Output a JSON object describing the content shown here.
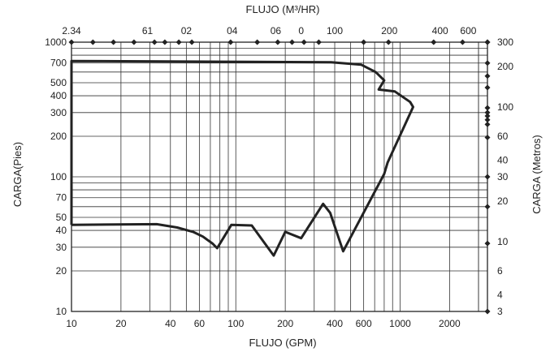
{
  "chart_data": {
    "type": "line",
    "x_scale": "log",
    "y_scale": "log",
    "xlim": [
      10,
      3400
    ],
    "ylim": [
      10,
      1000
    ],
    "grid": true,
    "legend": "none",
    "line_color": "#222222",
    "axes": {
      "bottom": {
        "title": "FLUJO (GPM)",
        "ticks": [
          {
            "value": 10,
            "label": "10"
          },
          {
            "value": 20,
            "label": "20"
          },
          {
            "value": 40,
            "label": "40"
          },
          {
            "value": 60,
            "label": "60"
          },
          {
            "value": 100,
            "label": "100"
          },
          {
            "value": 200,
            "label": "200"
          },
          {
            "value": 400,
            "label": "400"
          },
          {
            "value": 600,
            "label": "600"
          },
          {
            "value": 1000,
            "label": "1000"
          },
          {
            "value": 2000,
            "label": "2000"
          }
        ]
      },
      "left": {
        "title": "CARGA(Pies)",
        "ticks": [
          {
            "value": 10,
            "label": "10"
          },
          {
            "value": 20,
            "label": "20"
          },
          {
            "value": 30,
            "label": "30"
          },
          {
            "value": 40,
            "label": "40"
          },
          {
            "value": 50,
            "label": "50"
          },
          {
            "value": 70,
            "label": "70"
          },
          {
            "value": 100,
            "label": "100"
          },
          {
            "value": 200,
            "label": "200"
          },
          {
            "value": 300,
            "label": "300"
          },
          {
            "value": 400,
            "label": "400"
          },
          {
            "value": 500,
            "label": "500"
          },
          {
            "value": 700,
            "label": "700"
          },
          {
            "value": 1000,
            "label": "1000"
          }
        ]
      },
      "top": {
        "title": "FLUJO (M³/HR)",
        "markers": [
          10,
          13.5,
          18,
          24,
          32,
          37,
          45,
          54,
          93,
          135,
          180,
          220,
          260,
          320,
          600,
          850,
          1600,
          2400,
          3400
        ],
        "labels": [
          {
            "value": 10,
            "label": "2.34"
          },
          {
            "value": 29,
            "label": "61"
          },
          {
            "value": 50,
            "label": "02"
          },
          {
            "value": 95,
            "label": "04"
          },
          {
            "value": 175,
            "label": "06"
          },
          {
            "value": 250,
            "label": "0"
          },
          {
            "value": 400,
            "label": "100"
          },
          {
            "value": 860,
            "label": "200"
          },
          {
            "value": 1750,
            "label": "400"
          },
          {
            "value": 2600,
            "label": "600"
          }
        ]
      },
      "right": {
        "title": "CARGA (Metros)",
        "markers": [
          10,
          32,
          60,
          100,
          196,
          245,
          265,
          283,
          300,
          325,
          460,
          560,
          700,
          1000
        ],
        "labels": [
          {
            "value": 10,
            "label": "3"
          },
          {
            "value": 13.3,
            "label": "4"
          },
          {
            "value": 20,
            "label": "6"
          },
          {
            "value": 33,
            "label": "10"
          },
          {
            "value": 66,
            "label": "20"
          },
          {
            "value": 100,
            "label": "30"
          },
          {
            "value": 133,
            "label": "40"
          },
          {
            "value": 200,
            "label": "60"
          },
          {
            "value": 330,
            "label": "100"
          },
          {
            "value": 660,
            "label": "200"
          },
          {
            "value": 1000,
            "label": "300"
          }
        ]
      }
    },
    "series": [
      {
        "values": [
          [
            10,
            44
          ],
          [
            33,
            44.5
          ],
          [
            44,
            42
          ],
          [
            55,
            39
          ],
          [
            63,
            36
          ],
          [
            72,
            32
          ],
          [
            77,
            29.5
          ],
          [
            94,
            44
          ],
          [
            125,
            43.5
          ],
          [
            170,
            26
          ],
          [
            200,
            39
          ],
          [
            250,
            35
          ],
          [
            340,
            63
          ],
          [
            375,
            54
          ],
          [
            450,
            28
          ],
          [
            800,
            105
          ],
          [
            840,
            128
          ],
          [
            1200,
            330
          ],
          [
            1150,
            360
          ],
          [
            930,
            430
          ],
          [
            740,
            445
          ],
          [
            800,
            520
          ],
          [
            710,
            600
          ],
          [
            580,
            680
          ],
          [
            380,
            710
          ],
          [
            10,
            725
          ],
          [
            10,
            44
          ]
        ]
      }
    ]
  }
}
